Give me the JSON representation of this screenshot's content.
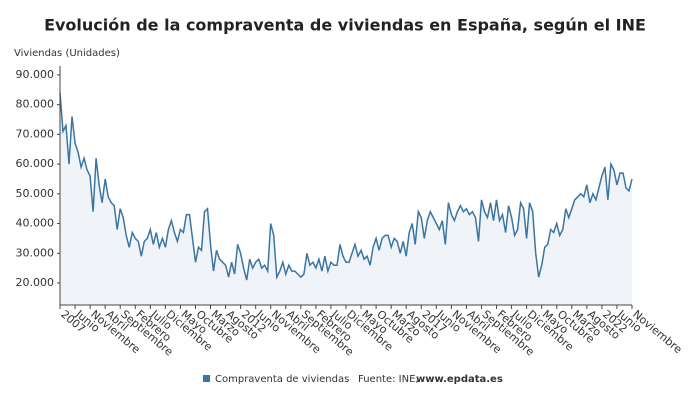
{
  "chart_data": {
    "type": "line",
    "title": "Evolución de la compraventa de viviendas en España, según el INE",
    "y_label": "Viviendas (Unidades)",
    "source": "Fuente: INE,",
    "source_site": "www.epdata.es",
    "categories": [
      "2007",
      null,
      null,
      null,
      null,
      "Junio",
      null,
      null,
      null,
      null,
      "Noviembre",
      null,
      null,
      null,
      null,
      "Abril",
      null,
      null,
      null,
      null,
      "Septiembre",
      null,
      null,
      null,
      null,
      "Febrero",
      null,
      null,
      null,
      null,
      "Julio",
      null,
      null,
      null,
      null,
      "Diciembre",
      null,
      null,
      null,
      null,
      "Mayo",
      null,
      null,
      null,
      null,
      "Octubre",
      null,
      null,
      null,
      null,
      "Marzo",
      null,
      null,
      null,
      null,
      "Agosto",
      null,
      null,
      null,
      null,
      "2012",
      null,
      null,
      null,
      null,
      "Junio",
      null,
      null,
      null,
      null,
      "Noviembre",
      null,
      null,
      null,
      null,
      "Abril",
      null,
      null,
      null,
      null,
      "Septiembre",
      null,
      null,
      null,
      null,
      "Febrero",
      null,
      null,
      null,
      null,
      "Julio",
      null,
      null,
      null,
      null,
      "Diciembre",
      null,
      null,
      null,
      null,
      "Mayo",
      null,
      null,
      null,
      null,
      "Octubre",
      null,
      null,
      null,
      null,
      "Marzo",
      null,
      null,
      null,
      null,
      "Agosto",
      null,
      null,
      null,
      null,
      "2017",
      null,
      null,
      null,
      null,
      "Junio",
      null,
      null,
      null,
      null,
      "Noviembre",
      null,
      null,
      null,
      null,
      "Abril",
      null,
      null,
      null,
      null,
      "Septiembre",
      null,
      null,
      null,
      null,
      "Febrero",
      null,
      null,
      null,
      null,
      "Julio",
      null,
      null,
      null,
      null,
      "Diciembre",
      null,
      null,
      null,
      null,
      "Mayo",
      null,
      null,
      null,
      null,
      "Octubre",
      null,
      null,
      null,
      null,
      "Marzo",
      null,
      null,
      null,
      null,
      "Agosto",
      null,
      null,
      null,
      null,
      "2022",
      null,
      null,
      null,
      null,
      "Junio",
      null,
      null,
      null,
      null,
      "Noviembre"
    ],
    "series": [
      {
        "name": "Compraventa de viviendas",
        "color": "#3a75a3",
        "values": [
          84000,
          71000,
          73000,
          60000,
          76000,
          67000,
          64000,
          59000,
          62000,
          58000,
          56000,
          44000,
          62000,
          53000,
          47000,
          55000,
          49000,
          47000,
          46000,
          38000,
          45000,
          42000,
          36000,
          32000,
          37000,
          35000,
          34000,
          29000,
          34000,
          35000,
          38000,
          33000,
          37000,
          32000,
          35000,
          32000,
          38000,
          41000,
          37000,
          34000,
          38000,
          37000,
          43000,
          43000,
          35000,
          27000,
          32000,
          31000,
          44000,
          45000,
          33000,
          24000,
          31000,
          28000,
          27000,
          26000,
          22000,
          27000,
          23000,
          33000,
          30000,
          25000,
          21000,
          28000,
          25000,
          27000,
          28000,
          25000,
          26000,
          24000,
          40000,
          36000,
          22000,
          24000,
          27000,
          23000,
          26000,
          24000,
          24000,
          23000,
          22000,
          23000,
          30000,
          26000,
          27000,
          25000,
          28000,
          24000,
          29000,
          24000,
          27000,
          26000,
          26000,
          33000,
          29000,
          27000,
          27000,
          30000,
          33000,
          29000,
          31000,
          28000,
          29000,
          26000,
          32000,
          35000,
          31000,
          35000,
          36000,
          36000,
          32000,
          35000,
          34000,
          30000,
          34000,
          29000,
          37000,
          40000,
          33000,
          44000,
          42000,
          35000,
          41000,
          44000,
          42000,
          40000,
          38000,
          41000,
          33000,
          47000,
          43000,
          41000,
          44000,
          46000,
          44000,
          45000,
          43000,
          44000,
          42000,
          34000,
          48000,
          44000,
          42000,
          47000,
          41000,
          48000,
          41000,
          43000,
          37000,
          46000,
          42000,
          36000,
          38000,
          47000,
          45000,
          35000,
          47000,
          44000,
          30000,
          22000,
          26000,
          32000,
          33000,
          38000,
          37000,
          40000,
          36000,
          38000,
          45000,
          42000,
          45000,
          48000,
          49000,
          50000,
          49000,
          53000,
          47000,
          50000,
          48000,
          52000,
          56000,
          59000,
          48000,
          60000,
          58000,
          53000,
          57000,
          57000,
          52000,
          51000,
          55000
        ]
      }
    ],
    "ylim": [
      12600,
      93000
    ],
    "yticks": [
      {
        "value": 20000,
        "label": "20.000"
      },
      {
        "value": 30000,
        "label": "30.000"
      },
      {
        "value": 40000,
        "label": "40.000"
      },
      {
        "value": 50000,
        "label": "50.000"
      },
      {
        "value": 60000,
        "label": "60.000"
      },
      {
        "value": 70000,
        "label": "70.000"
      },
      {
        "value": 80000,
        "label": "80.000"
      },
      {
        "value": 90000,
        "label": "90.000"
      }
    ],
    "grid": false
  }
}
